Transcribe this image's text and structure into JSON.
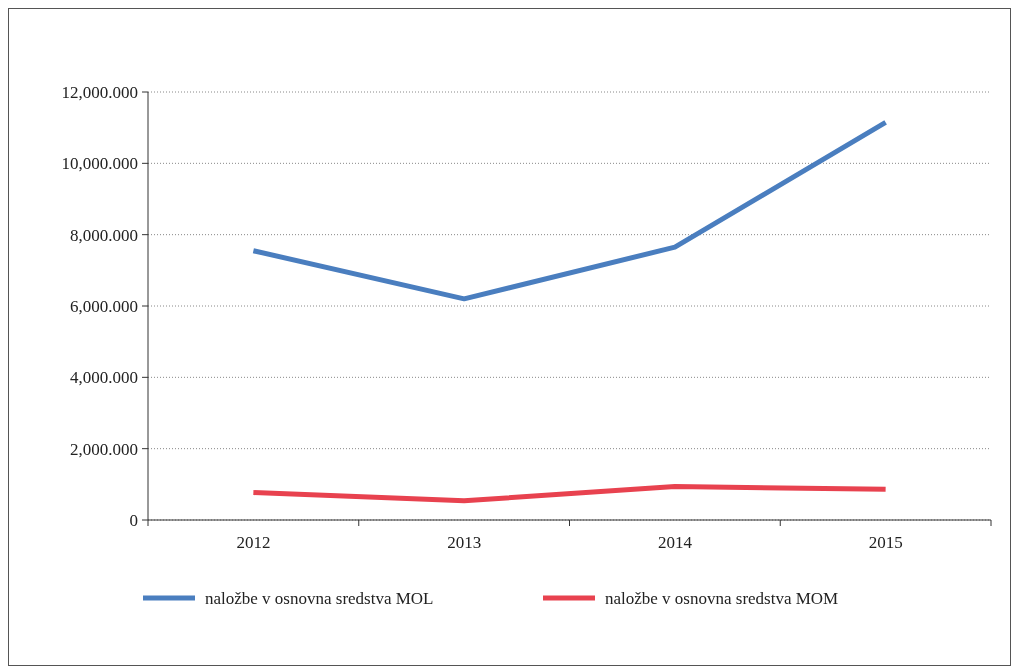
{
  "chart_data": {
    "type": "line",
    "categories": [
      "2012",
      "2013",
      "2014",
      "2015"
    ],
    "series": [
      {
        "name": "naložbe v osnovna sredstva MOL",
        "color": "#4a7ebf",
        "values": [
          7550,
          6200,
          7650,
          11150
        ]
      },
      {
        "name": "naložbe v osnovna sredstva MOM",
        "color": "#e8424f",
        "values": [
          770,
          540,
          940,
          860
        ]
      }
    ],
    "ylim": [
      0,
      12000
    ],
    "yticks": [
      0,
      {
        "value": 2000,
        "label": "2,000.000"
      },
      {
        "value": 4000,
        "label": "4,000.000"
      },
      {
        "value": 6000,
        "label": "6,000.000"
      },
      {
        "value": 8000,
        "label": "8,000.000"
      },
      {
        "value": 10000,
        "label": "10,000.000"
      },
      {
        "value": 12000,
        "label": "12,000.000"
      }
    ],
    "grid": "y",
    "legend": "bottom",
    "marker": "none",
    "line_style": "solid"
  }
}
